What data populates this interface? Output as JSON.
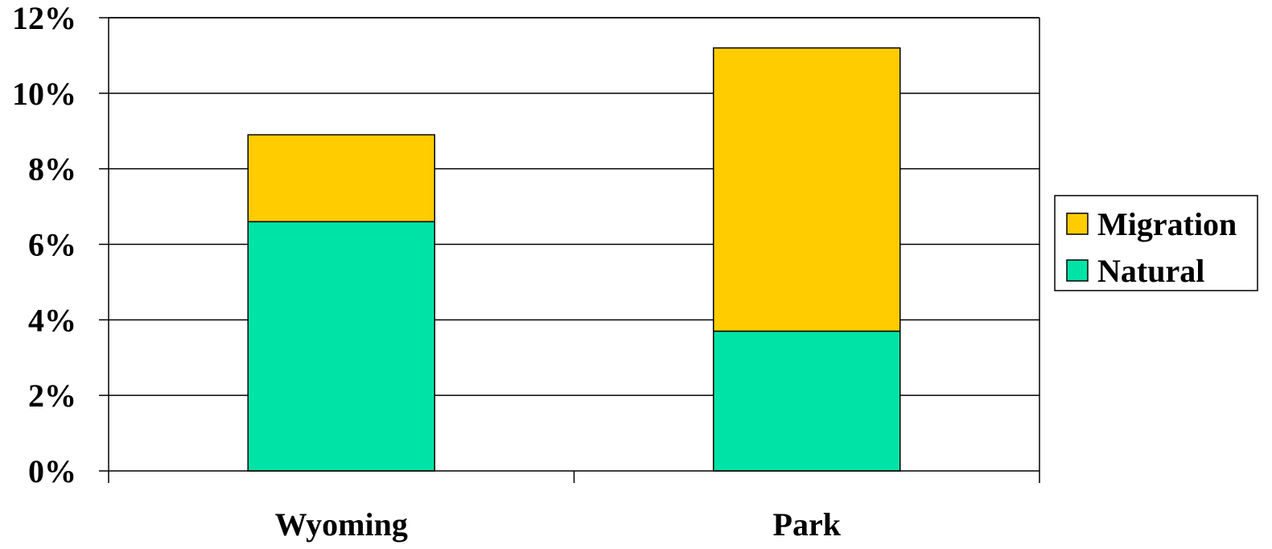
{
  "chart_data": {
    "type": "bar",
    "stacked": true,
    "categories": [
      "Wyoming",
      "Park"
    ],
    "series": [
      {
        "name": "Natural",
        "values": [
          6.6,
          3.7
        ],
        "color": "#00E3A6"
      },
      {
        "name": "Migration",
        "values": [
          2.3,
          7.5
        ],
        "color": "#FFCC00"
      }
    ],
    "ylim": [
      0,
      12
    ],
    "yticks": [
      0,
      2,
      4,
      6,
      8,
      10,
      12
    ],
    "ytick_labels": [
      "0%",
      "2%",
      "4%",
      "6%",
      "8%",
      "10%",
      "12%"
    ],
    "grid": true,
    "legend_position": "right",
    "legend_order": [
      "Migration",
      "Natural"
    ]
  }
}
